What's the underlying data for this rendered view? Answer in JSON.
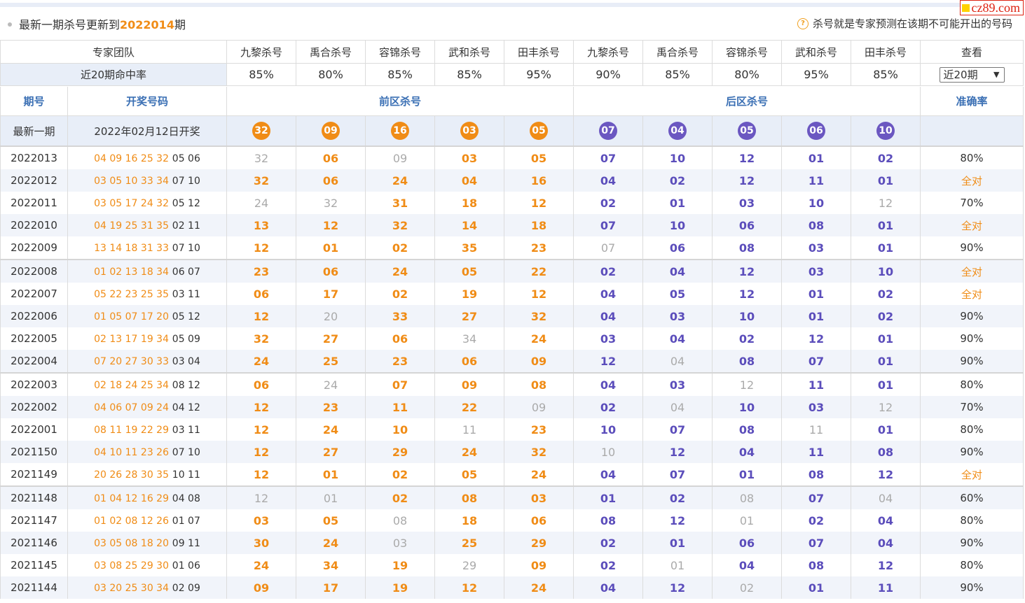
{
  "watermark": "cz89.com",
  "notice": {
    "prefix": "最新一期杀号更新到",
    "issue": "2022014",
    "suffix": "期",
    "tip": "杀号就是专家预测在该期不可能开出的号码"
  },
  "experts": {
    "team_label": "专家团队",
    "rate_label": "近20期命中率",
    "view_label": "查看",
    "select_value": "近20期",
    "names": [
      "九黎杀号",
      "禹合杀号",
      "容锦杀号",
      "武和杀号",
      "田丰杀号",
      "九黎杀号",
      "禹合杀号",
      "容锦杀号",
      "武和杀号",
      "田丰杀号"
    ],
    "rates": [
      "85%",
      "80%",
      "85%",
      "85%",
      "95%",
      "90%",
      "85%",
      "80%",
      "95%",
      "85%"
    ]
  },
  "columns": {
    "issue": "期号",
    "draw": "开奖号码",
    "front": "前区杀号",
    "back": "后区杀号",
    "accuracy": "准确率"
  },
  "latest": {
    "label": "最新一期",
    "date": "2022年02月12日开奖",
    "front": [
      "32",
      "09",
      "16",
      "03",
      "05"
    ],
    "back": [
      "07",
      "04",
      "05",
      "06",
      "10"
    ]
  },
  "rows": [
    {
      "issue": "2022013",
      "red": "04 09 16 25 32",
      "blue": "05 06",
      "kills": [
        "32",
        "06",
        "09",
        "03",
        "05",
        "07",
        "10",
        "12",
        "01",
        "02"
      ],
      "miss": [
        0,
        2
      ],
      "acc": "80%"
    },
    {
      "issue": "2022012",
      "red": "03 05 10 33 34",
      "blue": "07 10",
      "kills": [
        "32",
        "06",
        "24",
        "04",
        "16",
        "04",
        "02",
        "12",
        "11",
        "01"
      ],
      "miss": [],
      "acc": "全对"
    },
    {
      "issue": "2022011",
      "red": "03 05 17 24 32",
      "blue": "05 12",
      "kills": [
        "24",
        "32",
        "31",
        "18",
        "12",
        "02",
        "01",
        "03",
        "10",
        "12"
      ],
      "miss": [
        0,
        1,
        9
      ],
      "acc": "70%"
    },
    {
      "issue": "2022010",
      "red": "04 19 25 31 35",
      "blue": "02 11",
      "kills": [
        "13",
        "12",
        "32",
        "14",
        "18",
        "07",
        "10",
        "06",
        "08",
        "01"
      ],
      "miss": [],
      "acc": "全对"
    },
    {
      "issue": "2022009",
      "red": "13 14 18 31 33",
      "blue": "07 10",
      "kills": [
        "12",
        "01",
        "02",
        "35",
        "23",
        "07",
        "06",
        "08",
        "03",
        "01"
      ],
      "miss": [
        5
      ],
      "acc": "90%"
    },
    {
      "issue": "2022008",
      "red": "01 02 13 18 34",
      "blue": "06 07",
      "kills": [
        "23",
        "06",
        "24",
        "05",
        "22",
        "02",
        "04",
        "12",
        "03",
        "10"
      ],
      "miss": [],
      "acc": "全对"
    },
    {
      "issue": "2022007",
      "red": "05 22 23 25 35",
      "blue": "03 11",
      "kills": [
        "06",
        "17",
        "02",
        "19",
        "12",
        "04",
        "05",
        "12",
        "01",
        "02"
      ],
      "miss": [],
      "acc": "全对"
    },
    {
      "issue": "2022006",
      "red": "01 05 07 17 20",
      "blue": "05 12",
      "kills": [
        "12",
        "20",
        "33",
        "27",
        "32",
        "04",
        "03",
        "10",
        "01",
        "02"
      ],
      "miss": [
        1
      ],
      "acc": "90%"
    },
    {
      "issue": "2022005",
      "red": "02 13 17 19 34",
      "blue": "05 09",
      "kills": [
        "32",
        "27",
        "06",
        "34",
        "24",
        "03",
        "04",
        "02",
        "12",
        "01"
      ],
      "miss": [
        3
      ],
      "acc": "90%"
    },
    {
      "issue": "2022004",
      "red": "07 20 27 30 33",
      "blue": "03 04",
      "kills": [
        "24",
        "25",
        "23",
        "06",
        "09",
        "12",
        "04",
        "08",
        "07",
        "01"
      ],
      "miss": [
        6
      ],
      "acc": "90%"
    },
    {
      "issue": "2022003",
      "red": "02 18 24 25 34",
      "blue": "08 12",
      "kills": [
        "06",
        "24",
        "07",
        "09",
        "08",
        "04",
        "03",
        "12",
        "11",
        "01"
      ],
      "miss": [
        1,
        7
      ],
      "acc": "80%"
    },
    {
      "issue": "2022002",
      "red": "04 06 07 09 24",
      "blue": "04 12",
      "kills": [
        "12",
        "23",
        "11",
        "22",
        "09",
        "02",
        "04",
        "10",
        "03",
        "12"
      ],
      "miss": [
        4,
        6,
        9
      ],
      "acc": "70%"
    },
    {
      "issue": "2022001",
      "red": "08 11 19 22 29",
      "blue": "03 11",
      "kills": [
        "12",
        "24",
        "10",
        "11",
        "23",
        "10",
        "07",
        "08",
        "11",
        "01"
      ],
      "miss": [
        3,
        8
      ],
      "acc": "80%"
    },
    {
      "issue": "2021150",
      "red": "04 10 11 23 26",
      "blue": "07 10",
      "kills": [
        "12",
        "27",
        "29",
        "24",
        "32",
        "10",
        "12",
        "04",
        "11",
        "08"
      ],
      "miss": [
        5
      ],
      "acc": "90%"
    },
    {
      "issue": "2021149",
      "red": "20 26 28 30 35",
      "blue": "10 11",
      "kills": [
        "12",
        "01",
        "02",
        "05",
        "24",
        "04",
        "07",
        "01",
        "08",
        "12"
      ],
      "miss": [],
      "acc": "全对"
    },
    {
      "issue": "2021148",
      "red": "01 04 12 16 29",
      "blue": "04 08",
      "kills": [
        "12",
        "01",
        "02",
        "08",
        "03",
        "01",
        "02",
        "08",
        "07",
        "04"
      ],
      "miss": [
        0,
        1,
        7,
        9
      ],
      "acc": "60%"
    },
    {
      "issue": "2021147",
      "red": "01 02 08 12 26",
      "blue": "01 07",
      "kills": [
        "03",
        "05",
        "08",
        "18",
        "06",
        "08",
        "12",
        "01",
        "02",
        "04"
      ],
      "miss": [
        2,
        7
      ],
      "acc": "80%"
    },
    {
      "issue": "2021146",
      "red": "03 05 08 18 20",
      "blue": "09 11",
      "kills": [
        "30",
        "24",
        "03",
        "25",
        "29",
        "02",
        "01",
        "06",
        "07",
        "04"
      ],
      "miss": [
        2
      ],
      "acc": "90%"
    },
    {
      "issue": "2021145",
      "red": "03 08 25 29 30",
      "blue": "01 06",
      "kills": [
        "24",
        "34",
        "19",
        "29",
        "09",
        "02",
        "01",
        "04",
        "08",
        "12"
      ],
      "miss": [
        3,
        6
      ],
      "acc": "80%"
    },
    {
      "issue": "2021144",
      "red": "03 20 25 30 34",
      "blue": "02 09",
      "kills": [
        "09",
        "17",
        "19",
        "12",
        "24",
        "04",
        "12",
        "02",
        "01",
        "11"
      ],
      "miss": [
        7
      ],
      "acc": "90%"
    }
  ]
}
